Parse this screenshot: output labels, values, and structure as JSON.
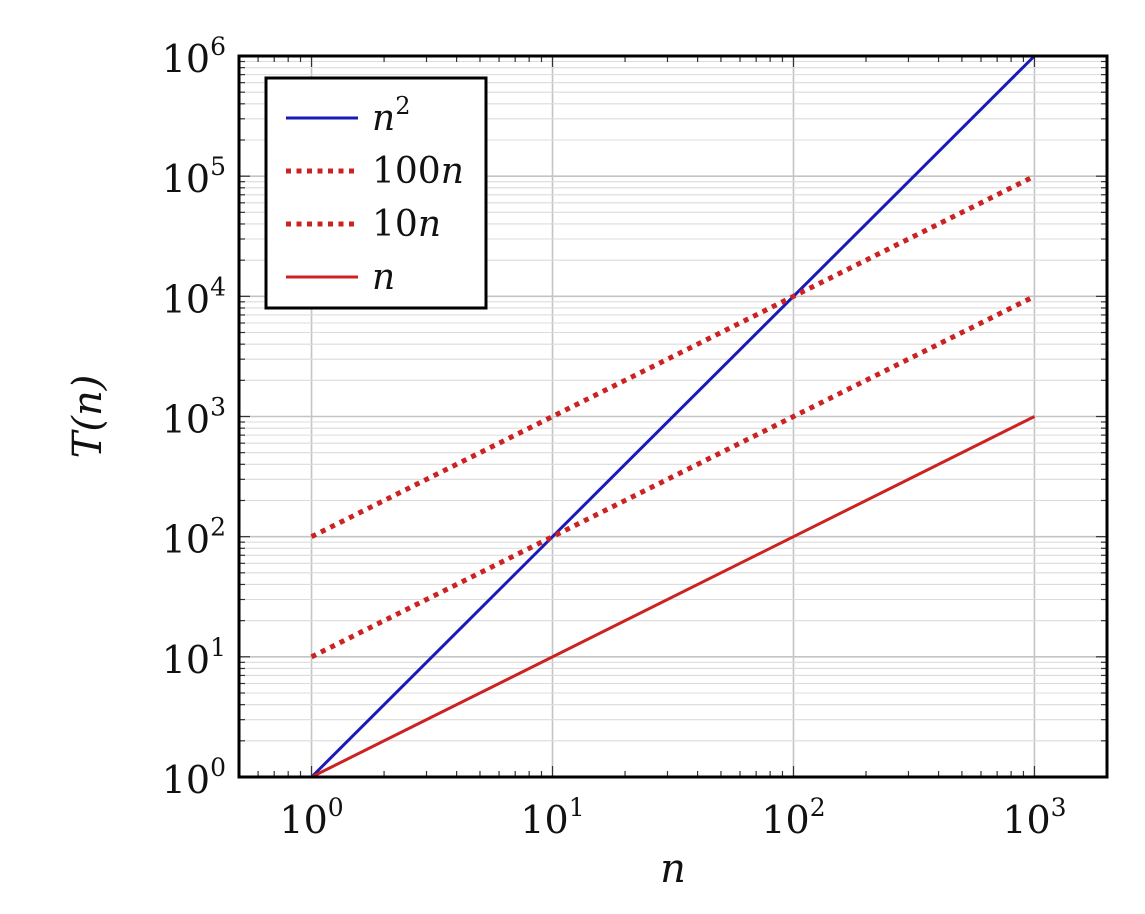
{
  "chart_data": {
    "type": "line",
    "scale": {
      "x": "log10",
      "y": "log10"
    },
    "xlabel": "n",
    "ylabel": "T(n)",
    "xlim": [
      0.5,
      2000
    ],
    "ylim": [
      1,
      1000000
    ],
    "grid": true,
    "legend_position": "top-left",
    "x_ticks": [
      {
        "base": "10",
        "exp": "0",
        "value": 1
      },
      {
        "base": "10",
        "exp": "1",
        "value": 10
      },
      {
        "base": "10",
        "exp": "2",
        "value": 100
      },
      {
        "base": "10",
        "exp": "3",
        "value": 1000
      }
    ],
    "y_ticks": [
      {
        "base": "10",
        "exp": "0",
        "value": 1
      },
      {
        "base": "10",
        "exp": "1",
        "value": 10
      },
      {
        "base": "10",
        "exp": "2",
        "value": 100
      },
      {
        "base": "10",
        "exp": "3",
        "value": 1000
      },
      {
        "base": "10",
        "exp": "4",
        "value": 10000
      },
      {
        "base": "10",
        "exp": "5",
        "value": 100000
      },
      {
        "base": "10",
        "exp": "6",
        "value": 1000000
      }
    ],
    "series": [
      {
        "name": "n^2",
        "label_coef": "",
        "label_var": "n",
        "label_sup": "2",
        "color": "#1a1ab8",
        "style": "solid",
        "x": [
          1,
          1000
        ],
        "y": [
          1,
          1000000
        ]
      },
      {
        "name": "100n",
        "label_coef": "100",
        "label_var": "n",
        "label_sup": "",
        "color": "#cc2222",
        "style": "dotted",
        "x": [
          1,
          1000
        ],
        "y": [
          100,
          100000
        ]
      },
      {
        "name": "10n",
        "label_coef": "10",
        "label_var": "n",
        "label_sup": "",
        "color": "#cc2222",
        "style": "dotted",
        "x": [
          1,
          1000
        ],
        "y": [
          10,
          10000
        ]
      },
      {
        "name": "n",
        "label_coef": "",
        "label_var": "n",
        "label_sup": "",
        "color": "#cc2222",
        "style": "solid",
        "x": [
          1,
          1000
        ],
        "y": [
          1,
          1000
        ]
      }
    ]
  }
}
